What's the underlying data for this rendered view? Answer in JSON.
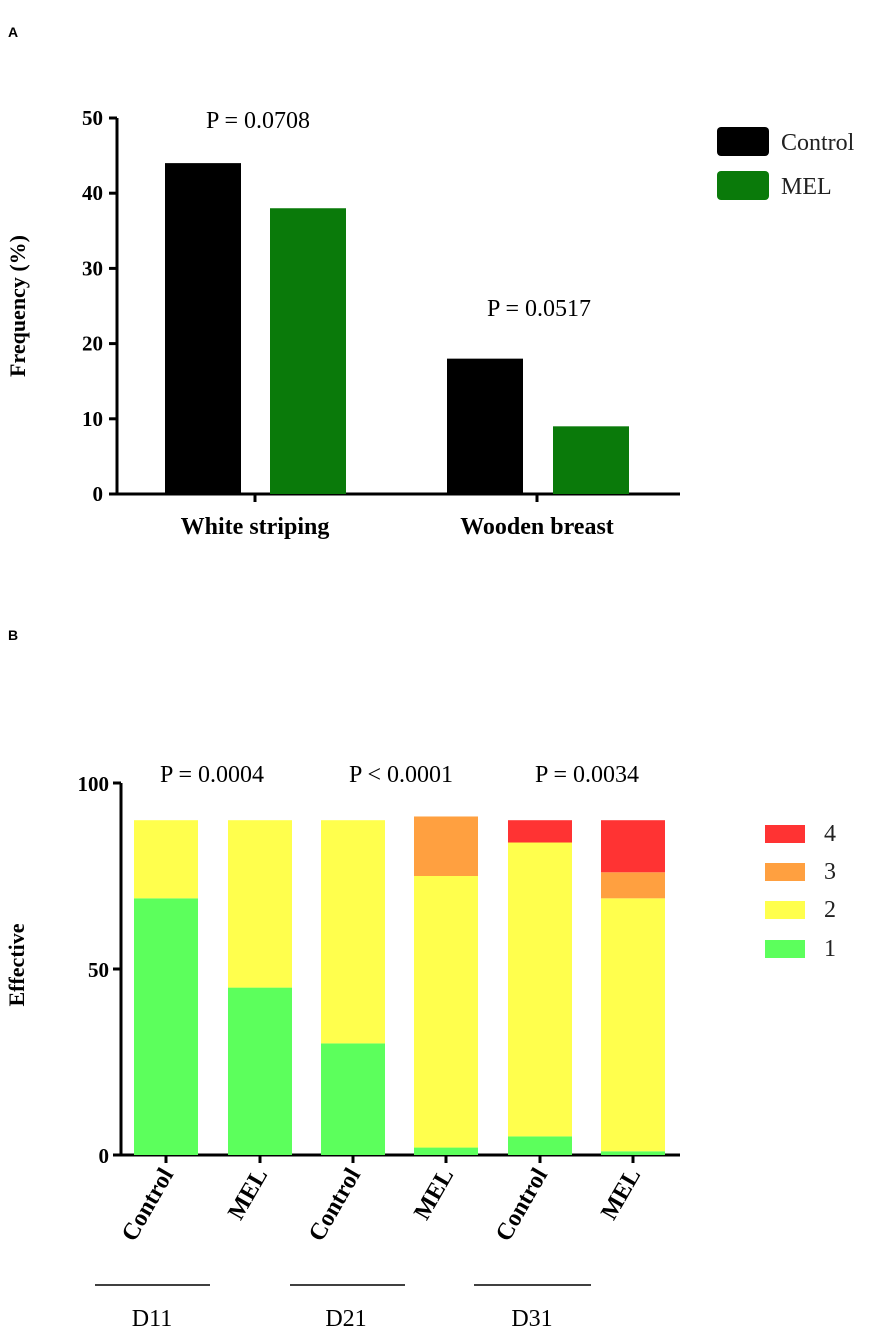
{
  "chart_data": [
    {
      "panel": "A",
      "type": "bar",
      "categories": [
        "White striping",
        "Wooden breast"
      ],
      "series": [
        {
          "name": "Control",
          "color": "#000000",
          "values": [
            44,
            18
          ]
        },
        {
          "name": "MEL",
          "color": "#0a7a0a",
          "values": [
            38,
            9
          ]
        }
      ],
      "ylabel": "Frequency (%)",
      "xlabel": "",
      "ylim": [
        0,
        50
      ],
      "yticks": [
        0,
        10,
        20,
        30,
        40,
        50
      ],
      "annotations": [
        "P = 0.0708",
        "P = 0.0517"
      ],
      "legend": [
        "Control",
        "MEL"
      ],
      "legend_position": "top-right"
    },
    {
      "panel": "B",
      "type": "bar",
      "stacked": true,
      "categories": [
        "Control",
        "MEL",
        "Control",
        "MEL",
        "Control",
        "MEL"
      ],
      "groups": [
        "D11",
        "D21",
        "D31"
      ],
      "series": [
        {
          "name": "1",
          "color": "#5cff5c",
          "values": [
            69,
            45,
            30,
            2,
            5,
            1
          ]
        },
        {
          "name": "2",
          "color": "#ffff4d",
          "values": [
            21,
            45,
            60,
            73,
            79,
            68
          ]
        },
        {
          "name": "3",
          "color": "#ffa040",
          "values": [
            0,
            0,
            0,
            16,
            0,
            7
          ]
        },
        {
          "name": "4",
          "color": "#ff3333",
          "values": [
            0,
            0,
            0,
            0,
            6,
            14
          ]
        }
      ],
      "ylabel": "Effective",
      "xlabel": "",
      "ylim": [
        0,
        100
      ],
      "yticks": [
        0,
        50,
        100
      ],
      "annotations": [
        "P = 0.0004",
        "P < 0.0001",
        "P = 0.0034"
      ],
      "legend": [
        "4",
        "3",
        "2",
        "1"
      ],
      "legend_position": "top-right"
    }
  ]
}
